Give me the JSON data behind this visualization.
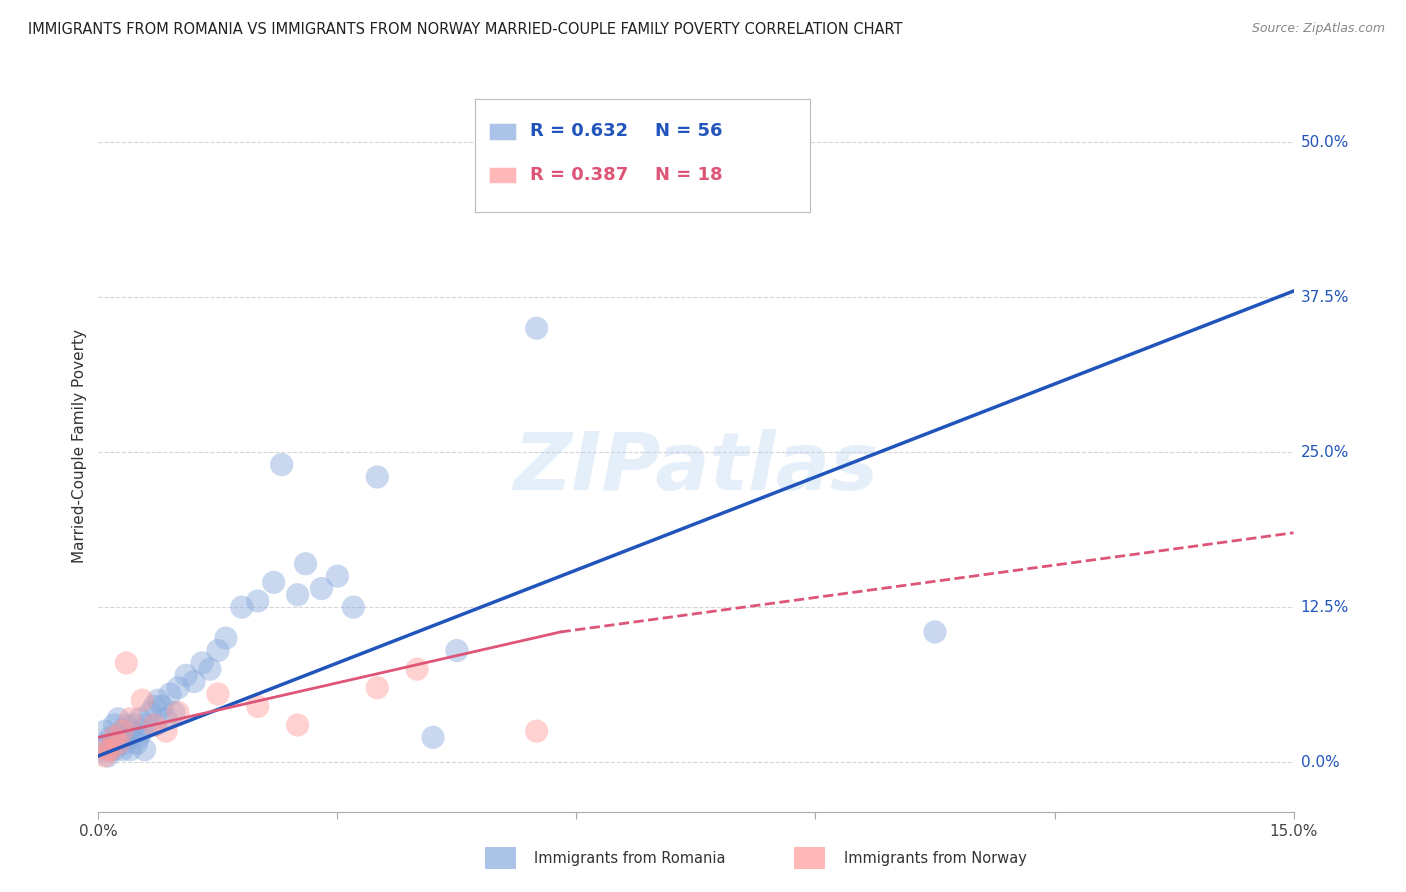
{
  "title": "IMMIGRANTS FROM ROMANIA VS IMMIGRANTS FROM NORWAY MARRIED-COUPLE FAMILY POVERTY CORRELATION CHART",
  "source": "Source: ZipAtlas.com",
  "ylabel": "Married-Couple Family Poverty",
  "ytick_values": [
    0.0,
    12.5,
    25.0,
    37.5,
    50.0
  ],
  "xmin": 0.0,
  "xmax": 15.0,
  "ymin": -4.0,
  "ymax": 55.0,
  "romania_R": 0.632,
  "romania_N": 56,
  "norway_R": 0.387,
  "norway_N": 18,
  "blue_scatter_color": "#88AADD",
  "pink_scatter_color": "#FF9999",
  "blue_line_color": "#2255BB",
  "pink_line_color": "#DD5577",
  "legend_label_romania": "Immigrants from Romania",
  "legend_label_norway": "Immigrants from Norway",
  "romania_scatter_x": [
    0.05,
    0.08,
    0.1,
    0.12,
    0.15,
    0.15,
    0.18,
    0.2,
    0.2,
    0.22,
    0.25,
    0.25,
    0.28,
    0.3,
    0.3,
    0.32,
    0.35,
    0.38,
    0.4,
    0.42,
    0.45,
    0.48,
    0.5,
    0.52,
    0.55,
    0.58,
    0.6,
    0.65,
    0.7,
    0.72,
    0.75,
    0.8,
    0.85,
    0.9,
    0.95,
    1.0,
    1.1,
    1.2,
    1.3,
    1.4,
    1.5,
    1.6,
    1.8,
    2.0,
    2.2,
    2.5,
    2.8,
    3.2,
    3.5,
    4.2,
    4.5,
    5.5,
    2.3,
    2.6,
    10.5,
    3.0
  ],
  "romania_scatter_y": [
    1.0,
    2.5,
    1.5,
    0.5,
    2.0,
    1.0,
    1.5,
    3.0,
    1.0,
    2.0,
    1.5,
    3.5,
    2.0,
    1.0,
    2.5,
    1.5,
    3.0,
    2.0,
    1.0,
    2.5,
    3.0,
    1.5,
    2.0,
    3.5,
    2.5,
    1.0,
    3.0,
    4.0,
    4.5,
    3.0,
    5.0,
    4.5,
    3.5,
    5.5,
    4.0,
    6.0,
    7.0,
    6.5,
    8.0,
    7.5,
    9.0,
    10.0,
    12.5,
    13.0,
    14.5,
    13.5,
    14.0,
    12.5,
    23.0,
    2.0,
    9.0,
    35.0,
    24.0,
    16.0,
    10.5,
    15.0
  ],
  "norway_scatter_x": [
    0.08,
    0.15,
    0.2,
    0.25,
    0.3,
    0.35,
    0.4,
    0.55,
    0.7,
    0.85,
    1.0,
    1.5,
    2.0,
    2.5,
    3.5,
    4.0,
    5.5,
    0.1
  ],
  "norway_scatter_y": [
    0.5,
    1.0,
    2.0,
    1.5,
    2.5,
    8.0,
    3.5,
    5.0,
    3.0,
    2.5,
    4.0,
    5.5,
    4.5,
    3.0,
    6.0,
    7.5,
    2.5,
    1.0
  ],
  "romania_line_x0": 0.0,
  "romania_line_x1": 15.0,
  "romania_line_y0": 0.5,
  "romania_line_y1": 38.0,
  "norway_solid_x0": 0.0,
  "norway_solid_x1": 5.8,
  "norway_solid_y0": 2.0,
  "norway_solid_y1": 10.5,
  "norway_dash_x0": 5.8,
  "norway_dash_x1": 15.0,
  "norway_dash_y0": 10.5,
  "norway_dash_y1": 18.5,
  "watermark_text": "ZIPatlas",
  "background_color": "#FFFFFF",
  "grid_color": "#CCCCCC"
}
